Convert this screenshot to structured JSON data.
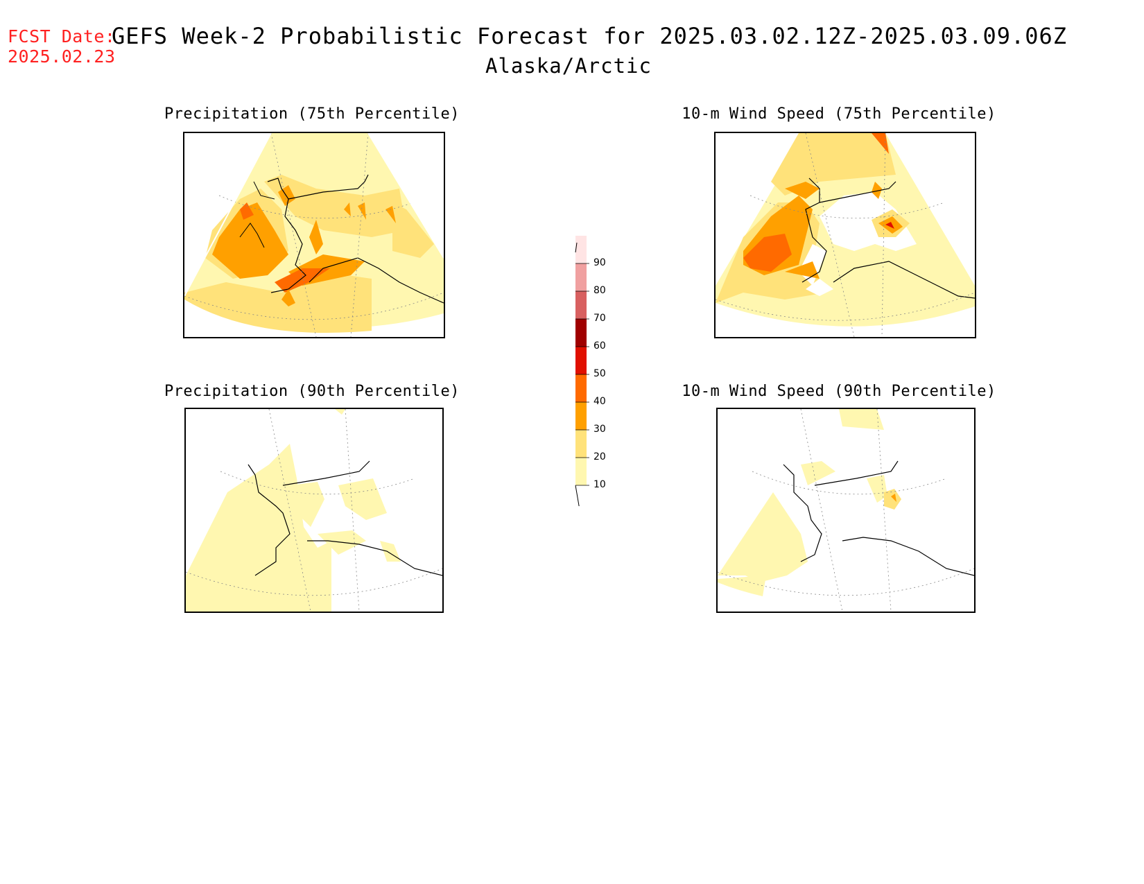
{
  "forecast_date": {
    "label": "FCST Date:",
    "value": "2025.02.23"
  },
  "title": "GEFS Week-2 Probabilistic Forecast for 2025.03.02.12Z-2025.03.09.06Z",
  "subtitle": "Alaska/Arctic",
  "panels": [
    {
      "title": "Precipitation (75th Percentile)"
    },
    {
      "title": "10-m Wind Speed (75th Percentile)"
    },
    {
      "title": "Precipitation (90th Percentile)"
    },
    {
      "title": "10-m Wind Speed (90th Percentile)"
    }
  ],
  "colorbar": {
    "levels": [
      "10",
      "20",
      "30",
      "40",
      "50",
      "60",
      "70",
      "80",
      "90"
    ],
    "colors": [
      "#fff7b0",
      "#ffe27a",
      "#ffa000",
      "#ff6a00",
      "#e01000",
      "#a00000",
      "#d86060",
      "#f0a0a0",
      "#ffe4e4"
    ]
  }
}
